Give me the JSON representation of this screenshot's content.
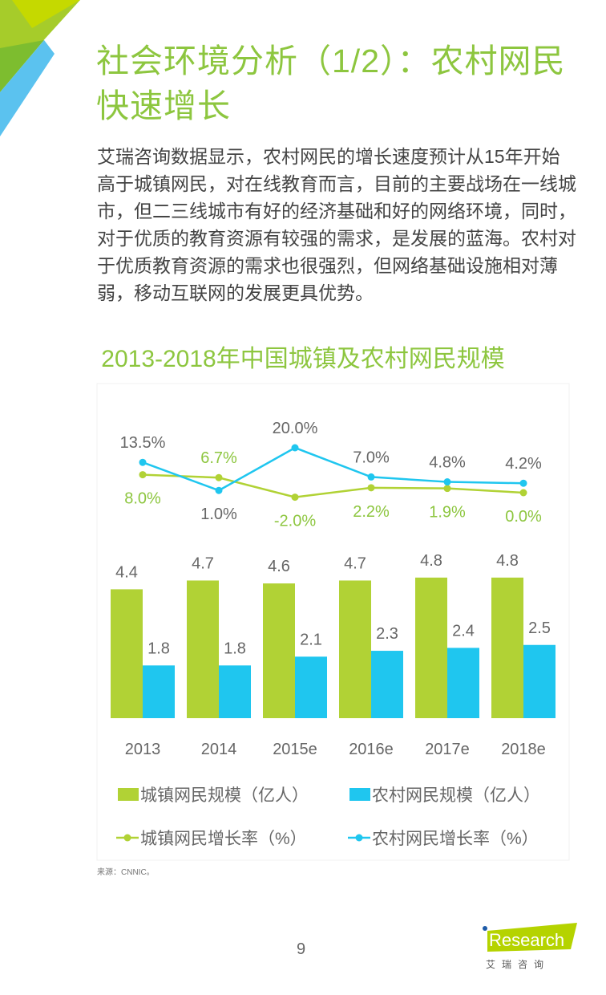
{
  "header": {
    "title": "社会环境分析（1/2）：农村网民快速增长",
    "body": "艾瑞咨询数据显示，农村网民的增长速度预计从15年开始高于城镇网民，对在线教育而言，目前的主要战场在一线城市，但二三线城市有好的经济基础和好的网络环境，同时，对于优质的教育资源有较强的需求，是发展的蓝海。农村对于优质教育资源的需求也很强烈，但网络基础设施相对薄弱，移动互联网的发展更具优势。"
  },
  "colors": {
    "green": "#b1d235",
    "blue": "#1fc6ef",
    "title_green": "#8dc63f",
    "text": "#666666"
  },
  "chart_data": {
    "type": "bar+line",
    "title": "2013-2018年中国城镇及农村网民规模",
    "categories": [
      "2013",
      "2014",
      "2015e",
      "2016e",
      "2017e",
      "2018e"
    ],
    "series": [
      {
        "name": "城镇网民规模（亿人）",
        "kind": "bar",
        "values": [
          4.4,
          4.7,
          4.6,
          4.7,
          4.8,
          4.8
        ],
        "labels": [
          "4.4",
          "4.7",
          "4.6",
          "4.7",
          "4.8",
          "4.8"
        ]
      },
      {
        "name": "农村网民规模（亿人）",
        "kind": "bar",
        "values": [
          1.8,
          1.8,
          2.1,
          2.3,
          2.4,
          2.5
        ],
        "labels": [
          "1.8",
          "1.8",
          "2.1",
          "2.3",
          "2.4",
          "2.5"
        ]
      },
      {
        "name": "城镇网民增长率（%）",
        "kind": "line",
        "values": [
          8.0,
          6.7,
          -2.0,
          2.2,
          1.9,
          0.0
        ],
        "labels": [
          "8.0%",
          "6.7%",
          "-2.0%",
          "2.2%",
          "1.9%",
          "0.0%"
        ]
      },
      {
        "name": "农村网民增长率（%）",
        "kind": "line",
        "values": [
          13.5,
          1.0,
          20.0,
          7.0,
          4.8,
          4.2
        ],
        "labels": [
          "13.5%",
          "1.0%",
          "20.0%",
          "7.0%",
          "4.8%",
          "4.2%"
        ]
      }
    ],
    "legend_position": "bottom",
    "grid": false
  },
  "footer": {
    "source": "来源：CNNIC。",
    "page": "9",
    "logo_text": "iResearch",
    "logo_sub": "艾 瑞 咨 询"
  }
}
